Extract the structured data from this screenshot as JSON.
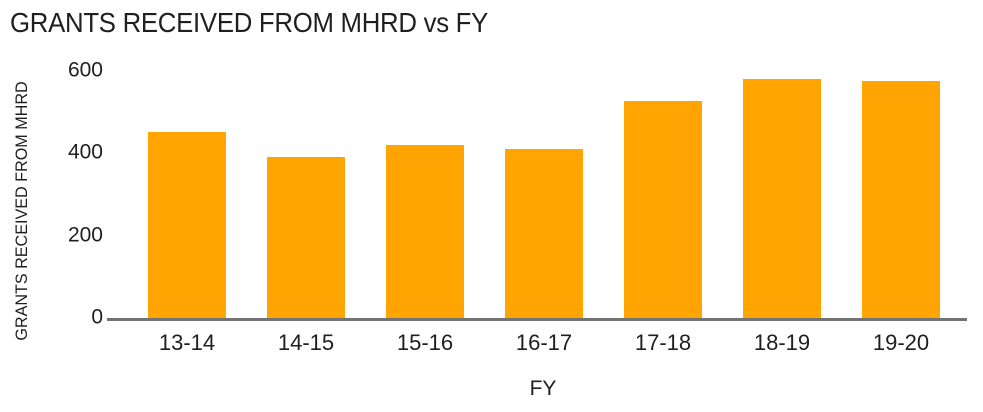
{
  "chart_data": {
    "type": "bar",
    "title": "GRANTS RECEIVED FROM MHRD vs FY",
    "xlabel": "FY",
    "ylabel": "GRANTS RECEIVED FROM MHRD",
    "categories": [
      "13-14",
      "14-15",
      "15-16",
      "16-17",
      "17-18",
      "18-19",
      "19-20"
    ],
    "values": [
      450,
      390,
      420,
      410,
      525,
      580,
      575
    ],
    "ylim": [
      0,
      600
    ],
    "yticks": [
      0,
      200,
      400,
      600
    ],
    "grid": false,
    "legend_position": "none",
    "bar_color": "#FFA400",
    "axis_line_color": "#737373",
    "text_color": "#1f1f1f",
    "background_color": "#ffffff"
  }
}
